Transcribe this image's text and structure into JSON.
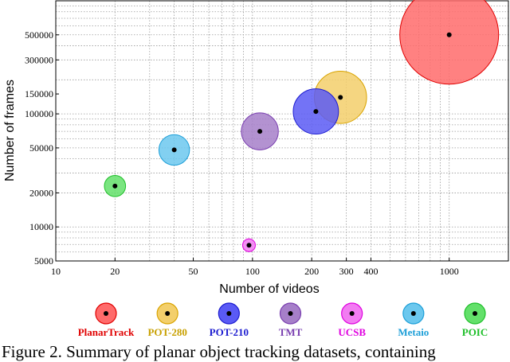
{
  "chart_data": {
    "type": "scatter",
    "xlabel": "Number of videos",
    "ylabel": "Number of frames",
    "xscale": "log",
    "yscale": "log",
    "xlim": [
      10,
      2000
    ],
    "ylim": [
      5000,
      1000000
    ],
    "grid": true,
    "x_tick_labels": [
      "10",
      "20",
      "50",
      "100",
      "200",
      "300",
      "400",
      "1000"
    ],
    "y_tick_labels": [
      "5000",
      "10000",
      "20000",
      "50000",
      "100000",
      "150000",
      "300000",
      "500000"
    ],
    "legend_placement": "bottom",
    "series": [
      {
        "name": "PlanarTrack",
        "x": 1000,
        "y": 500000,
        "color": "#ff6b6b",
        "stroke": "#e00000",
        "text_color": "#e00000"
      },
      {
        "name": "POT-280",
        "x": 280,
        "y": 140000,
        "color": "#f3cf6b",
        "stroke": "#d9a400",
        "text_color": "#c8a000"
      },
      {
        "name": "POT-210",
        "x": 210,
        "y": 105000,
        "color": "#5a5af5",
        "stroke": "#1c1cd0",
        "text_color": "#1c1cd0"
      },
      {
        "name": "TMT",
        "x": 109,
        "y": 70000,
        "color": "#a67fc9",
        "stroke": "#7a3fb0",
        "text_color": "#7a3fb0"
      },
      {
        "name": "UCSB",
        "x": 96,
        "y": 6889,
        "color": "#f27cf2",
        "stroke": "#e000e0",
        "text_color": "#e000e0"
      },
      {
        "name": "Metaio",
        "x": 40,
        "y": 48000,
        "color": "#6cc8ee",
        "stroke": "#1d9fd8",
        "text_color": "#1d9fd8"
      },
      {
        "name": "POIC",
        "x": 20,
        "y": 23000,
        "color": "#63e06a",
        "stroke": "#1fbf2a",
        "text_color": "#1fbf2a"
      }
    ]
  },
  "caption": "Figure 2. Summary of planar object tracking datasets, containing"
}
